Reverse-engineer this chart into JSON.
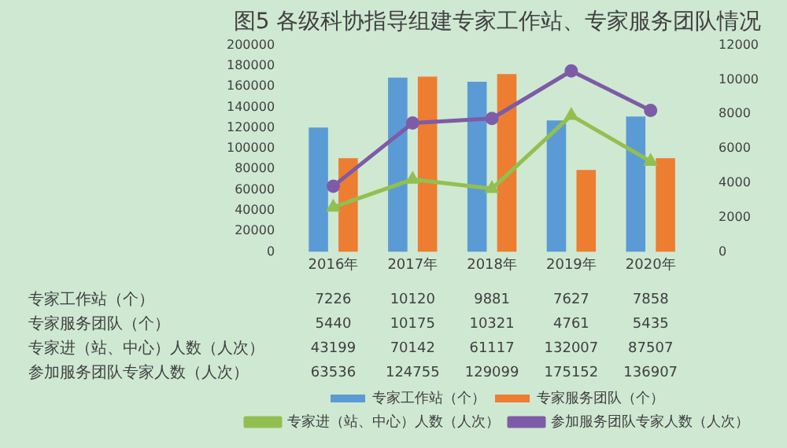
{
  "chart_data": {
    "type": "bar",
    "title": "图5 各级科协指导组建专家工作站、专家服务团队情况",
    "categories": [
      "2016年",
      "2017年",
      "2018年",
      "2019年",
      "2020年"
    ],
    "series": [
      {
        "name": "专家工作站（个）",
        "axis": "y2",
        "color": "#5b9bd5",
        "values": [
          7226,
          10120,
          9881,
          7627,
          7858
        ]
      },
      {
        "name": "专家服务团队（个）",
        "axis": "y2",
        "color": "#ed7d31",
        "values": [
          5440,
          10175,
          10321,
          4761,
          5435
        ]
      },
      {
        "name": "专家进（站、中心）人数（人次）",
        "type": "line",
        "marker": "triangle",
        "color": "#92c050",
        "values": [
          43199,
          70142,
          61117,
          132007,
          87507
        ]
      },
      {
        "name": "参加服务团队专家人数（人次）",
        "type": "line",
        "marker": "circle",
        "color": "#7d5ba6",
        "values": [
          63536,
          124755,
          129099,
          175152,
          136907
        ]
      }
    ],
    "ylim": [
      0,
      200000
    ],
    "yticks": [
      0,
      20000,
      40000,
      60000,
      80000,
      100000,
      120000,
      140000,
      160000,
      180000,
      200000
    ],
    "y2lim": [
      0,
      12000
    ],
    "y2ticks": [
      0,
      2000,
      4000,
      6000,
      8000,
      10000,
      12000
    ],
    "grid": false,
    "legend": "bottom",
    "data_labels": true
  }
}
